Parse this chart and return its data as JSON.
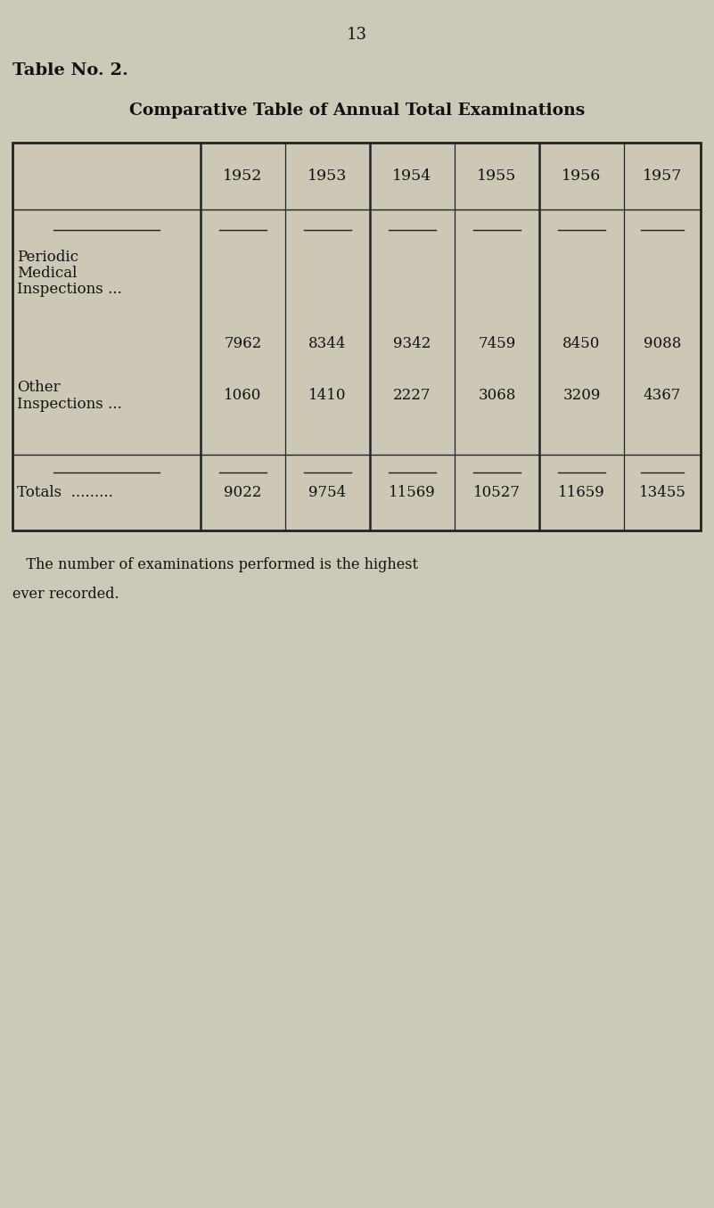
{
  "page_number": "13",
  "table_title_bold": "Table No. 2.",
  "table_subtitle": "Comparative Table of Annual Total Examinations",
  "years": [
    "1952",
    "1953",
    "1954",
    "1955",
    "1956",
    "1957"
  ],
  "row1_label": [
    "Periodic",
    "Medical",
    "Inspections ..."
  ],
  "row1_values": [
    7962,
    8344,
    9342,
    7459,
    8450,
    9088
  ],
  "row2_label": [
    "Other",
    "Inspections ..."
  ],
  "row2_values": [
    1060,
    1410,
    2227,
    3068,
    3209,
    4367
  ],
  "totals_label": "Totals  .........",
  "totals_values": [
    9022,
    9754,
    11569,
    10527,
    11659,
    13455
  ],
  "footer_line1": "   The number of examinations performed is the highest",
  "footer_line2": "ever recorded.",
  "bg_color": "#cdc9b8",
  "page_bg": "#d8d4c3",
  "table_bg": "#cdc8b5",
  "text_color": "#111111",
  "border_color": "#222222"
}
